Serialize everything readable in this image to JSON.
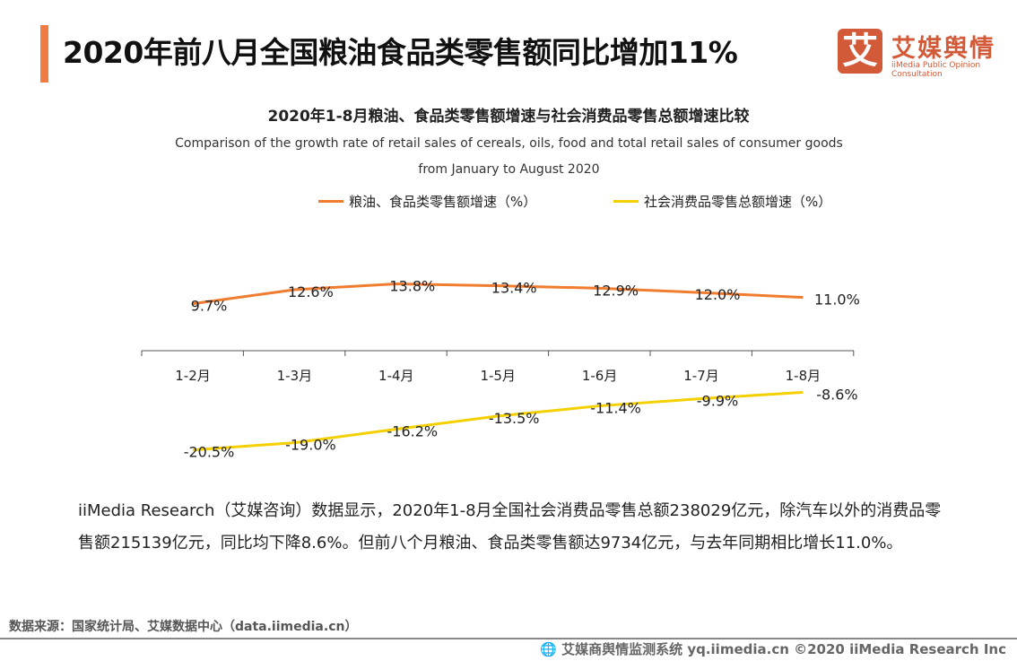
{
  "header": {
    "title": "2020年前八月全国粮油食品类零售额同比增加11%",
    "logo_mark": "艾",
    "logo_cn": "艾媒舆情",
    "logo_en": "iiMedia Public Opinion Consultation"
  },
  "chart_data": {
    "type": "line",
    "title": "2020年1-8月粮油、食品类零售额增速与社会消费品零售总额增速比较",
    "subtitle": "Comparison of the growth rate of retail sales of cereals, oils, food and total retail sales of consumer goods from January to August 2020",
    "categories": [
      "1-2月",
      "1-3月",
      "1-4月",
      "1-5月",
      "1-6月",
      "1-7月",
      "1-8月"
    ],
    "series": [
      {
        "name": "粮油、食品类零售额增速（%）",
        "color": "#f07c30",
        "values": [
          9.7,
          12.6,
          13.8,
          13.4,
          12.9,
          12.0,
          11.0
        ],
        "labels": [
          "9.7%",
          "12.6%",
          "13.8%",
          "13.4%",
          "12.9%",
          "12.0%",
          "11.0%"
        ]
      },
      {
        "name": "社会消费品零售总额增速（%）",
        "color": "#f5d000",
        "values": [
          -20.5,
          -19.0,
          -16.2,
          -13.5,
          -11.4,
          -9.9,
          -8.6
        ],
        "labels": [
          "-20.5%",
          "-19.0%",
          "-16.2%",
          "-13.5%",
          "-11.4%",
          "-9.9%",
          "-8.6%"
        ]
      }
    ],
    "legend": "top",
    "grid": false
  },
  "body": {
    "paragraph": "iiMedia Research（艾媒咨询）数据显示，2020年1-8月全国社会消费品零售总额238029亿元，除汽车以外的消费品零售额215139亿元，同比均下降8.6%。但前八个月粮油、食品类零售额达9734亿元，与去年同期相比增长11.0%。"
  },
  "footer": {
    "source": "数据来源：国家统计局、艾媒数据中心（data.iimedia.cn）",
    "copyright": "艾媒商舆情监测系统 yq.iimedia.cn  ©2020  iiMedia Research  Inc",
    "icon": "globe-cursor-icon"
  }
}
